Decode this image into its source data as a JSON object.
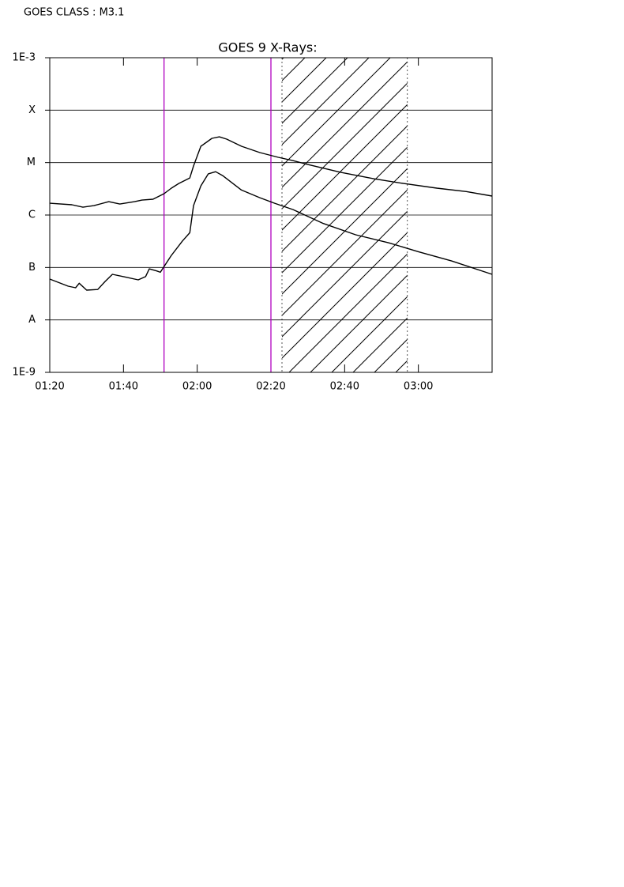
{
  "header": "GOES CLASS : M3.1",
  "chart_data": {
    "type": "line",
    "title": "GOES 9 X-Rays:",
    "log_scale": true,
    "xlim": [
      "01:20",
      "03:20"
    ],
    "xticks": [
      "01:20",
      "01:40",
      "02:00",
      "02:20",
      "02:40",
      "03:00"
    ],
    "ylim": [
      1e-09,
      0.001
    ],
    "yticks": [
      {
        "value": 0.001,
        "label": "1E-3"
      },
      {
        "value": 0.0001,
        "label": "X"
      },
      {
        "value": 1e-05,
        "label": "M"
      },
      {
        "value": 1e-06,
        "label": "C"
      },
      {
        "value": 1e-07,
        "label": "B"
      },
      {
        "value": 1e-08,
        "label": "A"
      },
      {
        "value": 1e-09,
        "label": "1E-9"
      }
    ],
    "grid": true,
    "markers": [
      {
        "x": "01:51",
        "color": "#b000c0"
      },
      {
        "x": "02:20",
        "color": "#b000c0"
      }
    ],
    "shaded_range": [
      "02:23",
      "02:57"
    ],
    "series": [
      {
        "color": "#000000",
        "x": [
          "01:20",
          "01:26",
          "01:29",
          "01:32",
          "01:36",
          "01:39",
          "01:43",
          "01:45",
          "01:48",
          "01:51",
          "01:53",
          "01:55",
          "01:58",
          "01:59",
          "02:01",
          "02:04",
          "02:06",
          "02:08",
          "02:12",
          "02:17",
          "02:22",
          "02:26",
          "02:30",
          "02:39",
          "02:48",
          "02:56",
          "03:05",
          "03:13",
          "03:20"
        ],
        "values": [
          1.68e-06,
          1.57e-06,
          1.41e-06,
          1.51e-06,
          1.8e-06,
          1.62e-06,
          1.8e-06,
          1.93e-06,
          2e-06,
          2.55e-06,
          3.25e-06,
          4e-06,
          5.1e-06,
          8.6e-06,
          2.05e-05,
          2.9e-05,
          3.1e-05,
          2.8e-05,
          2.05e-05,
          1.55e-05,
          1.26e-05,
          1.09e-05,
          9.2e-06,
          6.5e-06,
          4.9e-06,
          4e-06,
          3.25e-06,
          2.8e-06,
          2.3e-06
        ]
      },
      {
        "color": "#000000",
        "x": [
          "01:20",
          "01:25",
          "01:27",
          "01:28",
          "01:30",
          "01:33",
          "01:35",
          "01:37",
          "01:40",
          "01:44",
          "01:46",
          "01:47",
          "01:49",
          "01:50",
          "01:52",
          "01:53",
          "01:56",
          "01:58",
          "01:59",
          "02:01",
          "02:03",
          "02:05",
          "02:07",
          "02:12",
          "02:17",
          "02:21",
          "02:26",
          "02:34",
          "02:43",
          "02:52",
          "03:00",
          "03:09",
          "03:20"
        ],
        "values": [
          6e-08,
          4.4e-08,
          4.1e-08,
          5e-08,
          3.7e-08,
          3.8e-08,
          5.4e-08,
          7.4e-08,
          6.7e-08,
          5.8e-08,
          6.7e-08,
          9.4e-08,
          8.6e-08,
          8.1e-08,
          1.33e-07,
          1.7e-07,
          3.2e-07,
          4.6e-07,
          1.51e-06,
          3.6e-06,
          6.1e-06,
          6.7e-06,
          5.6e-06,
          3e-06,
          2.14e-06,
          1.68e-06,
          1.27e-06,
          7e-07,
          4.2e-07,
          2.95e-07,
          2e-07,
          1.33e-07,
          7.4e-08
        ]
      }
    ]
  }
}
